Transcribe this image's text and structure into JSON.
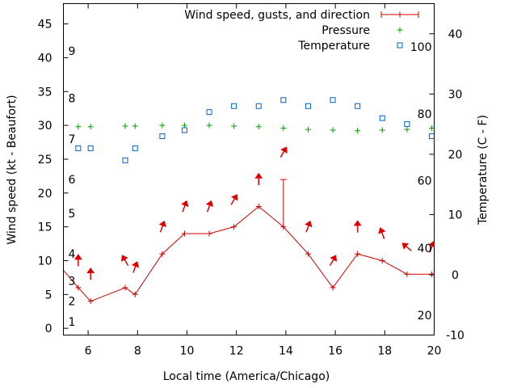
{
  "chart_data": {
    "type": "line",
    "xlabel": "Local time (America/Chicago)",
    "ylabel_left": "Wind speed (kt - Beaufort)",
    "ylabel_right": "Temperature (C - F)",
    "xlim": [
      5,
      20
    ],
    "ylim_left": [
      -1,
      48
    ],
    "ylim_right": [
      -10,
      45
    ],
    "x_ticks": [
      6,
      8,
      10,
      12,
      14,
      16,
      18,
      20
    ],
    "y_left_ticks": [
      0,
      5,
      10,
      15,
      20,
      25,
      30,
      35,
      40,
      45
    ],
    "y_right_ticks": [
      -10,
      0,
      10,
      20,
      30,
      40
    ],
    "beaufort_labels": [
      {
        "text": "1",
        "y": 1
      },
      {
        "text": "2",
        "y": 4
      },
      {
        "text": "3",
        "y": 7
      },
      {
        "text": "4",
        "y": 11
      },
      {
        "text": "5",
        "y": 17
      },
      {
        "text": "6",
        "y": 22
      },
      {
        "text": "7",
        "y": 28
      },
      {
        "text": "8",
        "y": 34
      },
      {
        "text": "9",
        "y": 41
      }
    ],
    "fahrenheit_labels": [
      {
        "text": "20",
        "y": -6.7
      },
      {
        "text": "40",
        "y": 4.4
      },
      {
        "text": "60",
        "y": 15.6
      },
      {
        "text": "80",
        "y": 26.7
      },
      {
        "text": "100",
        "y": 37.8
      }
    ],
    "legend": [
      {
        "name": "Wind speed, gusts, and direction",
        "color": "#d00000"
      },
      {
        "name": "Pressure",
        "color": "#00a000"
      },
      {
        "name": "Temperature",
        "color": "#0060d0"
      }
    ],
    "legend_position": "top-right",
    "series": [
      {
        "name": "Wind speed, gusts, and direction",
        "x": [
          4.9,
          5.6,
          6.1,
          7.5,
          7.9,
          9.0,
          9.9,
          10.9,
          11.9,
          12.9,
          13.9,
          14.9,
          15.9,
          16.9,
          17.9,
          18.9,
          19.9,
          20.0
        ],
        "y": [
          9,
          6,
          4,
          6,
          5,
          11,
          14,
          14,
          15,
          18,
          15,
          11,
          6,
          11,
          10,
          8,
          8,
          8
        ]
      },
      {
        "name": "Gusts",
        "points": [
          {
            "x": 13.9,
            "y_low": 15,
            "y_high": 22
          }
        ]
      },
      {
        "name": "Pressure",
        "x": [
          5.6,
          6.1,
          7.5,
          7.9,
          9.0,
          9.9,
          10.9,
          11.9,
          12.9,
          13.9,
          14.9,
          15.9,
          16.9,
          17.9,
          18.9,
          19.9
        ],
        "y": [
          29.8,
          29.8,
          29.9,
          29.9,
          30.0,
          30.0,
          30.0,
          29.9,
          29.8,
          29.6,
          29.4,
          29.3,
          29.2,
          29.3,
          29.4,
          29.6
        ]
      },
      {
        "name": "Temperature",
        "x": [
          5.6,
          6.1,
          7.5,
          7.9,
          9.0,
          9.9,
          10.9,
          11.9,
          12.9,
          13.9,
          14.9,
          15.9,
          16.9,
          17.9,
          18.9,
          19.9
        ],
        "y": [
          21,
          21,
          19,
          21,
          23,
          24,
          27,
          28,
          28,
          29,
          28,
          29,
          28,
          26,
          25,
          23
        ]
      },
      {
        "name": "Wind direction arrows",
        "points": [
          {
            "x": 5.6,
            "y": 10,
            "angle": 180
          },
          {
            "x": 6.1,
            "y": 8,
            "angle": 180
          },
          {
            "x": 7.5,
            "y": 10,
            "angle": 150
          },
          {
            "x": 7.9,
            "y": 9,
            "angle": 200
          },
          {
            "x": 9.0,
            "y": 15,
            "angle": 200
          },
          {
            "x": 9.9,
            "y": 18,
            "angle": 200
          },
          {
            "x": 10.9,
            "y": 18,
            "angle": 200
          },
          {
            "x": 11.9,
            "y": 19,
            "angle": 210
          },
          {
            "x": 12.9,
            "y": 22,
            "angle": 180
          },
          {
            "x": 13.9,
            "y": 26,
            "angle": 210
          },
          {
            "x": 14.9,
            "y": 15,
            "angle": 200
          },
          {
            "x": 15.9,
            "y": 10,
            "angle": 210
          },
          {
            "x": 16.9,
            "y": 15,
            "angle": 180
          },
          {
            "x": 17.9,
            "y": 14,
            "angle": 160
          },
          {
            "x": 18.9,
            "y": 12,
            "angle": 130
          },
          {
            "x": 19.9,
            "y": 12,
            "angle": 200
          }
        ]
      }
    ]
  }
}
